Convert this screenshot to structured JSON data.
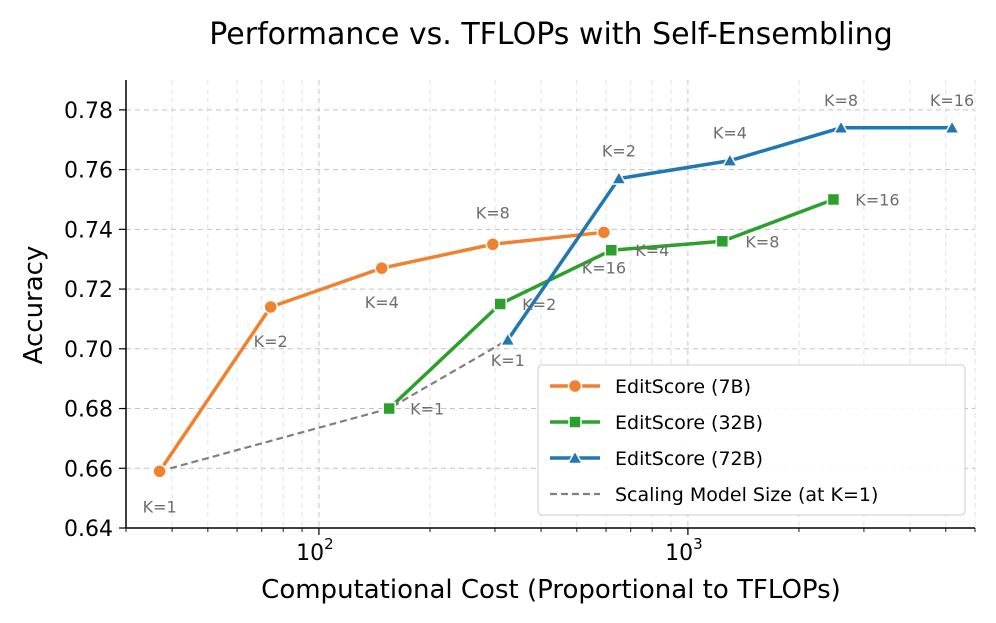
{
  "chart_data": {
    "type": "line",
    "title": "Performance vs. TFLOPs with Self-Ensembling",
    "xlabel": "Computational Cost (Proportional to TFLOPs)",
    "ylabel": "Accuracy",
    "xscale": "log",
    "xlim": [
      30,
      6000
    ],
    "ylim": [
      0.64,
      0.79
    ],
    "yticks": [
      "0.64",
      "0.66",
      "0.68",
      "0.70",
      "0.72",
      "0.74",
      "0.76",
      "0.78"
    ],
    "xticks": [
      {
        "value": 100,
        "base": "10",
        "exp": "2"
      },
      {
        "value": 1000,
        "base": "10",
        "exp": "3"
      }
    ],
    "grid": true,
    "legend_position": "lower-right",
    "series": [
      {
        "name": "EditScore (7B)",
        "color": "#f0812f",
        "marker": "circle",
        "x": [
          37,
          74,
          148,
          296,
          592
        ],
        "y": [
          0.659,
          0.714,
          0.727,
          0.735,
          0.739
        ],
        "labels": [
          "K=1",
          "K=2",
          "K=4",
          "K=8",
          ""
        ]
      },
      {
        "name": "EditScore (32B)",
        "color": "#2ca02c",
        "marker": "square",
        "x": [
          155,
          310,
          620,
          1240,
          2480
        ],
        "y": [
          0.68,
          0.715,
          0.733,
          0.736,
          0.75
        ],
        "labels": [
          "K=1",
          "K=2",
          "K=4",
          "K=8",
          "K=16"
        ]
      },
      {
        "name": "EditScore (72B)",
        "color": "#1f77b4",
        "marker": "triangle",
        "x": [
          325,
          650,
          1300,
          2600,
          5200
        ],
        "y": [
          0.703,
          0.757,
          0.763,
          0.774,
          0.774
        ],
        "labels": [
          "K=1",
          "K=2",
          "K=4",
          "K=8",
          "K=16"
        ]
      },
      {
        "name": "Scaling Model Size (at K=1)",
        "color": "#808080",
        "marker": "none",
        "dashed": true,
        "x": [
          37,
          155,
          325
        ],
        "y": [
          0.659,
          0.68,
          0.703
        ],
        "labels": []
      }
    ],
    "annotations": [
      {
        "text": "K=16",
        "x": 592,
        "y": 0.739
      }
    ]
  }
}
